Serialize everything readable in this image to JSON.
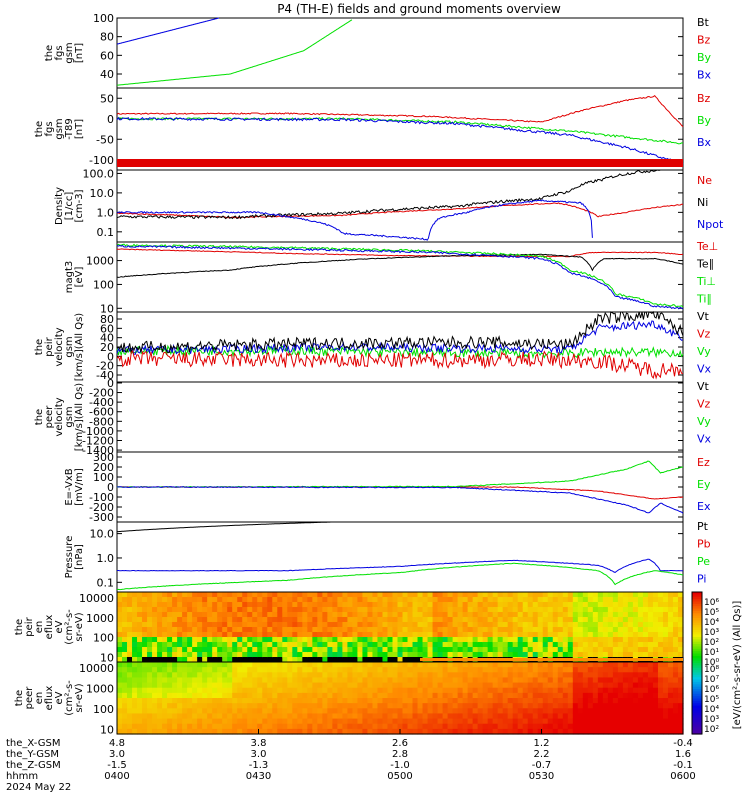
{
  "title": "P4 (TH-E) fields and ground moments overview",
  "colors": {
    "black": "#000000",
    "red": "#e00000",
    "green": "#00e000",
    "blue": "#0000e0"
  },
  "panels": [
    {
      "id": "fgs",
      "ylabel": [
        "the",
        "fgs",
        "gsm",
        "[nT]"
      ],
      "ticks": [
        {
          "v": 100,
          "t": "100"
        },
        {
          "v": 80,
          "t": "80"
        },
        {
          "v": 60,
          "t": "60"
        },
        {
          "v": 40,
          "t": "40"
        }
      ],
      "legend": [
        {
          "t": "Bt",
          "c": "black"
        },
        {
          "t": "Bz",
          "c": "red"
        },
        {
          "t": "By",
          "c": "green"
        },
        {
          "t": "Bx",
          "c": "blue"
        }
      ]
    },
    {
      "id": "fgs_dsl",
      "ylabel": [
        "the",
        "fgs",
        "gsm",
        "-T89",
        "[nT]"
      ],
      "ticks": [
        {
          "v": 50,
          "t": "50"
        },
        {
          "v": 0,
          "t": "0"
        },
        {
          "v": -50,
          "t": "-50"
        },
        {
          "v": -100,
          "t": "-100"
        }
      ],
      "legend": [
        {
          "t": "Bz",
          "c": "red"
        },
        {
          "t": "By",
          "c": "green"
        },
        {
          "t": "Bx",
          "c": "blue"
        }
      ]
    },
    {
      "id": "density",
      "ylabel": [
        "Density",
        "[1/cc]",
        "[cm-3]"
      ],
      "ticks": [
        {
          "v": 100,
          "t": "100.0"
        },
        {
          "v": 10,
          "t": "10.0"
        },
        {
          "v": 1,
          "t": "1.0"
        },
        {
          "v": 0.1,
          "t": "0.1"
        }
      ],
      "legend": [
        {
          "t": "Ne",
          "c": "red"
        },
        {
          "t": "Ni",
          "c": "black"
        },
        {
          "t": "Npot",
          "c": "blue"
        }
      ]
    },
    {
      "id": "temp",
      "ylabel": [
        "magt3",
        "[eV]"
      ],
      "ticks": [
        {
          "v": 1000,
          "t": "1000"
        },
        {
          "v": 100,
          "t": "100"
        },
        {
          "v": 10,
          "t": "10"
        }
      ],
      "legend": [
        {
          "t": "Te⊥",
          "c": "red"
        },
        {
          "t": "Te∥",
          "c": "black"
        },
        {
          "t": "Ti⊥",
          "c": "green"
        },
        {
          "t": "Ti∥",
          "c": "green"
        }
      ]
    },
    {
      "id": "peir_vel",
      "ylabel": [
        "the",
        "peir",
        "velocity",
        "gsm",
        "[km/s](All Qs)"
      ],
      "ticks": [
        {
          "v": 80,
          "t": "80"
        },
        {
          "v": 60,
          "t": "60"
        },
        {
          "v": 40,
          "t": "40"
        },
        {
          "v": 20,
          "t": "20"
        },
        {
          "v": 0,
          "t": "0"
        },
        {
          "v": -20,
          "t": "-20"
        },
        {
          "v": -40,
          "t": "-40"
        }
      ],
      "legend": [
        {
          "t": "Vt",
          "c": "black"
        },
        {
          "t": "Vz",
          "c": "red"
        },
        {
          "t": "Vy",
          "c": "green"
        },
        {
          "t": "Vx",
          "c": "blue"
        }
      ]
    },
    {
      "id": "peer_vel",
      "ylabel": [
        "the",
        "peer",
        "velocity",
        "gsm",
        "[km/s](All Qs)"
      ],
      "ticks": [
        {
          "v": 0,
          "t": "0"
        },
        {
          "v": -200,
          "t": "-200"
        },
        {
          "v": -400,
          "t": "-400"
        },
        {
          "v": -600,
          "t": "-600"
        },
        {
          "v": -800,
          "t": "-800"
        },
        {
          "v": -1000,
          "t": "-1000"
        },
        {
          "v": -1200,
          "t": "-1200"
        },
        {
          "v": -1400,
          "t": "-1400"
        }
      ],
      "legend": [
        {
          "t": "Vt",
          "c": "black"
        },
        {
          "t": "Vz",
          "c": "red"
        },
        {
          "t": "Vy",
          "c": "green"
        },
        {
          "t": "Vx",
          "c": "blue"
        }
      ]
    },
    {
      "id": "efield",
      "ylabel": [
        "E=-VxB",
        "[mV/m]"
      ],
      "ticks": [
        {
          "v": 300,
          "t": "300"
        },
        {
          "v": 200,
          "t": "200"
        },
        {
          "v": 100,
          "t": "100"
        },
        {
          "v": 0,
          "t": "0"
        },
        {
          "v": -100,
          "t": "-100"
        },
        {
          "v": -200,
          "t": "-200"
        },
        {
          "v": -300,
          "t": "-300"
        }
      ],
      "legend": [
        {
          "t": "Ez",
          "c": "red"
        },
        {
          "t": "Ey",
          "c": "green"
        },
        {
          "t": "Ex",
          "c": "blue"
        }
      ]
    },
    {
      "id": "pressure",
      "ylabel": [
        "Pressure",
        "[nPa]"
      ],
      "ticks": [
        {
          "v": 10,
          "t": "10.0"
        },
        {
          "v": 1,
          "t": "1.0"
        },
        {
          "v": 0.1,
          "t": "0.1"
        }
      ],
      "legend": [
        {
          "t": "Pt",
          "c": "black"
        },
        {
          "t": "Pb",
          "c": "red"
        },
        {
          "t": "Pe",
          "c": "green"
        },
        {
          "t": "Pi",
          "c": "blue"
        }
      ]
    },
    {
      "id": "peir_spec",
      "ylabel": [
        "the",
        "peir",
        "en",
        "eflux",
        "eV",
        "(cm²-s-",
        "sr-eV)"
      ],
      "ticks": [
        {
          "v": 10000,
          "t": "10000"
        },
        {
          "v": 1000,
          "t": "1000"
        },
        {
          "v": 100,
          "t": "100"
        },
        {
          "v": 10,
          "t": "10"
        }
      ],
      "legend": []
    },
    {
      "id": "peer_spec",
      "ylabel": [
        "the",
        "peer",
        "en",
        "eflux",
        "eV",
        "(cm²-s-",
        "sr-eV)"
      ],
      "ticks": [
        {
          "v": 10000,
          "t": "10000"
        },
        {
          "v": 1000,
          "t": "1000"
        },
        {
          "v": 100,
          "t": "100"
        },
        {
          "v": 10,
          "t": "10"
        }
      ],
      "legend": []
    }
  ],
  "colorbar": {
    "ticks": [
      "10⁸",
      "10⁷",
      "10⁶",
      "10⁵",
      "10⁴",
      "10³",
      "10²"
    ],
    "ticks_upper": [
      "10⁶",
      "10⁵",
      "10⁴",
      "10³",
      "10²",
      "10¹",
      "10⁰"
    ],
    "label": "[eV/(cm²-s-sr-eV) (All Qs)]"
  },
  "xaxis": {
    "rows": [
      {
        "label": "the_X-GSM",
        "values": [
          "4.8",
          "3.8",
          "2.6",
          "1.2",
          "-0.4"
        ]
      },
      {
        "label": "the_Y-GSM",
        "values": [
          "3.0",
          "3.0",
          "2.8",
          "2.2",
          "1.6"
        ]
      },
      {
        "label": "the_Z-GSM",
        "values": [
          "-1.5",
          "-1.3",
          "-1.0",
          "-0.7",
          "-0.1"
        ]
      },
      {
        "label": "hhmm",
        "values": [
          "0400",
          "0430",
          "0500",
          "0530",
          "0600"
        ]
      }
    ],
    "date": "2024 May 22"
  },
  "chart_data": [
    {
      "type": "line",
      "title": "P4 (TH-E) fields and ground moments overview",
      "ylabel": "the fgs gsm [nT]",
      "ylim": [
        25,
        100
      ],
      "x": [
        "0400",
        "0430",
        "0500",
        "0530",
        "0600"
      ],
      "series": [
        {
          "name": "Bx",
          "values": [
            72,
            100,
            null,
            null,
            null
          ]
        },
        {
          "name": "By",
          "values": [
            28,
            52,
            100,
            null,
            null
          ]
        }
      ]
    },
    {
      "type": "line",
      "ylabel": "the fgs gsm -T89 [nT]",
      "ylim": [
        -125,
        75
      ],
      "x": [
        "0400",
        "0430",
        "0500",
        "0530",
        "0600"
      ],
      "series": [
        {
          "name": "Bz",
          "values": [
            12,
            15,
            5,
            -8,
            55
          ]
        },
        {
          "name": "By",
          "values": [
            0,
            0,
            -5,
            -25,
            -60
          ]
        },
        {
          "name": "Bx",
          "values": [
            0,
            -2,
            -8,
            -35,
            -110
          ]
        }
      ]
    },
    {
      "type": "line",
      "ylabel": "Density [1/cc]",
      "ylim": [
        0.03,
        150
      ],
      "scale": "log",
      "x": [
        "0400",
        "0430",
        "0500",
        "0530",
        "0600"
      ],
      "series": [
        {
          "name": "Ne",
          "values": [
            0.8,
            0.55,
            0.8,
            2.5,
            2
          ]
        },
        {
          "name": "Ni",
          "values": [
            0.6,
            0.55,
            1,
            4,
            150
          ]
        },
        {
          "name": "Npot",
          "values": [
            1,
            1,
            0.05,
            3,
            null
          ]
        }
      ]
    },
    {
      "type": "line",
      "ylabel": "magt3 [eV]",
      "ylim": [
        10,
        6000
      ],
      "scale": "log",
      "x": [
        "0400",
        "0430",
        "0500",
        "0530",
        "0600"
      ],
      "series": [
        {
          "name": "Te⊥",
          "values": [
            3000,
            2000,
            1500,
            1500,
            1500
          ]
        },
        {
          "name": "Te∥",
          "values": [
            200,
            600,
            1200,
            1500,
            900
          ]
        },
        {
          "name": "Ti⊥",
          "values": [
            4500,
            3500,
            2500,
            1500,
            15
          ]
        },
        {
          "name": "Ti∥",
          "values": [
            4000,
            3000,
            2000,
            1200,
            10
          ]
        }
      ]
    },
    {
      "type": "line",
      "ylabel": "the peir velocity gsm [km/s](All Qs)",
      "ylim": [
        -55,
        95
      ],
      "x": [
        "0400",
        "0430",
        "0500",
        "0530",
        "0600"
      ],
      "series": [
        {
          "name": "Vt",
          "values": [
            15,
            25,
            30,
            20,
            95
          ]
        },
        {
          "name": "Vz",
          "values": [
            -5,
            -10,
            -8,
            -5,
            -25
          ]
        },
        {
          "name": "Vy",
          "values": [
            5,
            8,
            5,
            3,
            45
          ]
        },
        {
          "name": "Vx",
          "values": [
            10,
            15,
            20,
            15,
            75
          ]
        }
      ]
    },
    {
      "type": "line",
      "ylabel": "the peer velocity gsm [km/s](All Qs)",
      "ylim": [
        -1400,
        0
      ],
      "x": [
        "0400",
        "0430",
        "0500",
        "0530",
        "0600"
      ],
      "series": []
    },
    {
      "type": "line",
      "ylabel": "E=-VxB [mV/m]",
      "ylim": [
        -350,
        350
      ],
      "x": [
        "0400",
        "0430",
        "0500",
        "0530",
        "0600"
      ],
      "series": [
        {
          "name": "Ez",
          "values": [
            0,
            0,
            0,
            -10,
            -100
          ]
        },
        {
          "name": "Ey",
          "values": [
            0,
            0,
            5,
            20,
            260
          ]
        },
        {
          "name": "Ex",
          "values": [
            0,
            0,
            -3,
            -20,
            -220
          ]
        }
      ]
    },
    {
      "type": "line",
      "ylabel": "Pressure [nPa]",
      "ylim": [
        0.04,
        30
      ],
      "scale": "log",
      "x": [
        "0400",
        "0430",
        "0500",
        "0530",
        "0600"
      ],
      "series": [
        {
          "name": "Pt",
          "values": [
            12,
            30,
            null,
            null,
            null
          ]
        },
        {
          "name": "Pi",
          "values": [
            0.3,
            0.3,
            0.5,
            0.8,
            0.3
          ]
        },
        {
          "name": "Pe",
          "values": [
            0.05,
            0.1,
            0.3,
            0.6,
            0.25
          ]
        }
      ]
    },
    {
      "type": "heatmap",
      "ylabel": "the peir en eflux eV (cm²-s-sr-eV)",
      "ylim": [
        5,
        20000
      ],
      "scale": "log"
    },
    {
      "type": "heatmap",
      "ylabel": "the peer en eflux eV (cm²-s-sr-eV)",
      "ylim": [
        5,
        20000
      ],
      "scale": "log"
    }
  ]
}
